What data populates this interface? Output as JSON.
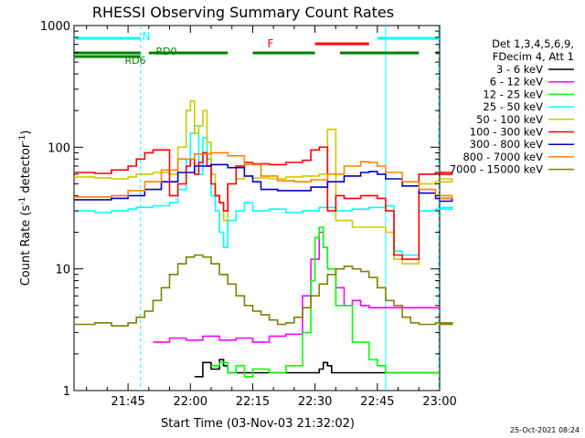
{
  "chart_data": {
    "type": "line",
    "title": "RHESSI Observing Summary Count Rates",
    "xlabel": "Start Time (03-Nov-03 21:32:02)",
    "ylabel_main": "Count Rate (s",
    "ylabel_sup1": "-1",
    "ylabel_mid": " detector",
    "ylabel_sup2": "-1",
    "ylabel_end": ")",
    "yscale": "log",
    "ylim": [
      1,
      1000
    ],
    "xlim_minutes": [
      -13,
      75
    ],
    "x_unit": "minutes relative to 21:45",
    "x_ticks": [
      {
        "value": 0,
        "label": "21:45"
      },
      {
        "value": 15,
        "label": "22:00"
      },
      {
        "value": 30,
        "label": "22:15"
      },
      {
        "value": 45,
        "label": "22:30"
      },
      {
        "value": 60,
        "label": "22:45"
      },
      {
        "value": 75,
        "label": "23:00"
      }
    ],
    "y_ticks": [
      {
        "value": 1,
        "label": "1"
      },
      {
        "value": 10,
        "label": "10"
      },
      {
        "value": 100,
        "label": "100"
      },
      {
        "value": 1000,
        "label": "1000"
      }
    ],
    "legend_header": [
      "Det 1,3,4,5,6,9,",
      "FDecim 4, Att 1"
    ],
    "legend_placement": "right",
    "timestamp": "25-Oct-2021 08:24",
    "series": [
      {
        "name": "3 - 6 keV",
        "color": "#000000",
        "x": [
          16,
          18,
          20,
          22,
          23,
          24,
          46,
          47,
          48,
          49
        ],
        "y": [
          1.3,
          1.7,
          1.5,
          1.8,
          1.6,
          1.4,
          1.5,
          1.7,
          1.6,
          1.4
        ]
      },
      {
        "name": "6 - 12 keV",
        "color": "#ff00ff",
        "x": [
          6,
          10,
          14,
          18,
          22,
          26,
          30,
          34,
          38,
          42,
          44,
          46,
          47,
          48,
          50,
          52,
          54,
          56,
          58
        ],
        "y": [
          2.5,
          2.7,
          2.6,
          2.8,
          2.6,
          2.7,
          2.5,
          2.8,
          2.9,
          6,
          12,
          20,
          15,
          10,
          7,
          5,
          5.5,
          5,
          4.8
        ]
      },
      {
        "name": "12 - 25 keV",
        "color": "#00ff00",
        "x": [
          20,
          22,
          24,
          26,
          28,
          30,
          34,
          38,
          42,
          44,
          45,
          46,
          47,
          48,
          50,
          54,
          58,
          60,
          62
        ],
        "y": [
          1.6,
          1.7,
          1.4,
          1.6,
          1.3,
          1.5,
          1.4,
          1.6,
          3,
          8,
          18,
          22,
          15,
          10,
          5,
          2.5,
          1.8,
          1.6,
          1.4
        ]
      },
      {
        "name": "25 - 50 keV",
        "color": "#00ffff",
        "x": [
          -13,
          -8,
          -4,
          0,
          2,
          6,
          10,
          12,
          14,
          15,
          16,
          17,
          18,
          19,
          20,
          21,
          22,
          23,
          24,
          26,
          28,
          30,
          34,
          38,
          42,
          46,
          50,
          54,
          58,
          62,
          64,
          66,
          70,
          74,
          78
        ],
        "y": [
          30,
          29,
          30,
          31,
          32,
          33,
          35,
          45,
          80,
          130,
          150,
          60,
          120,
          80,
          40,
          30,
          20,
          15,
          25,
          30,
          35,
          30,
          31,
          29,
          30,
          32,
          30,
          31,
          32,
          33,
          14,
          13,
          30,
          31,
          32
        ]
      },
      {
        "name": "50 - 100 keV",
        "color": "#d0c800",
        "x": [
          -13,
          -8,
          -4,
          0,
          2,
          6,
          10,
          12,
          14,
          15,
          16,
          17,
          18,
          19,
          20,
          21,
          22,
          23,
          24,
          26,
          28,
          30,
          34,
          38,
          42,
          46,
          48,
          50,
          54,
          58,
          62,
          64,
          66,
          70,
          74,
          78
        ],
        "y": [
          57,
          56,
          55,
          57,
          60,
          62,
          60,
          100,
          200,
          240,
          130,
          150,
          200,
          110,
          60,
          40,
          35,
          25,
          50,
          55,
          58,
          56,
          55,
          57,
          58,
          60,
          140,
          25,
          22,
          22,
          20,
          12,
          11,
          50,
          52,
          55
        ]
      },
      {
        "name": "100 - 300 keV",
        "color": "#ff0000",
        "x": [
          -13,
          -8,
          -4,
          0,
          2,
          4,
          6,
          10,
          12,
          14,
          15,
          16,
          17,
          18,
          19,
          20,
          21,
          22,
          23,
          24,
          26,
          28,
          30,
          34,
          38,
          42,
          44,
          46,
          48,
          50,
          52,
          56,
          60,
          62,
          64,
          66,
          70,
          74,
          78
        ],
        "y": [
          62,
          61,
          65,
          70,
          80,
          90,
          95,
          40,
          50,
          70,
          80,
          60,
          75,
          90,
          70,
          50,
          40,
          35,
          30,
          50,
          70,
          75,
          73,
          72,
          75,
          78,
          95,
          100,
          30,
          40,
          38,
          40,
          38,
          30,
          13,
          12,
          60,
          62,
          60
        ]
      },
      {
        "name": "300 - 800 keV",
        "color": "#0000cc",
        "x": [
          -13,
          -8,
          -4,
          0,
          4,
          8,
          12,
          16,
          20,
          24,
          28,
          30,
          32,
          36,
          40,
          44,
          48,
          52,
          56,
          58,
          60,
          62,
          66,
          70,
          74,
          78
        ],
        "y": [
          37,
          37,
          38,
          40,
          45,
          52,
          62,
          70,
          72,
          68,
          58,
          52,
          45,
          44,
          44,
          47,
          52,
          58,
          62,
          63,
          60,
          55,
          48,
          42,
          38,
          36
        ]
      },
      {
        "name": "800 - 7000 keV",
        "color": "#ff8000",
        "x": [
          -13,
          -8,
          -4,
          0,
          4,
          8,
          12,
          16,
          20,
          24,
          28,
          32,
          36,
          40,
          44,
          48,
          52,
          56,
          58,
          60,
          62,
          66,
          70,
          74,
          78
        ],
        "y": [
          39,
          39,
          40,
          44,
          52,
          65,
          80,
          88,
          90,
          85,
          72,
          58,
          53,
          52,
          54,
          60,
          70,
          76,
          75,
          70,
          62,
          52,
          45,
          40,
          38
        ]
      },
      {
        "name": "7000 - 15000 keV",
        "color": "#808000",
        "x": [
          -13,
          -8,
          -4,
          0,
          2,
          4,
          6,
          8,
          10,
          12,
          14,
          16,
          18,
          20,
          22,
          24,
          26,
          28,
          30,
          32,
          34,
          36,
          38,
          40,
          42,
          44,
          46,
          48,
          50,
          52,
          54,
          56,
          58,
          60,
          62,
          64,
          66,
          68,
          70,
          74,
          78
        ],
        "y": [
          3.5,
          3.6,
          3.4,
          3.6,
          4,
          4.5,
          5.5,
          7,
          9,
          11,
          12.5,
          13,
          12.5,
          11,
          9,
          7.5,
          6,
          5,
          4.5,
          4.2,
          3.8,
          3.5,
          3.6,
          4,
          4.8,
          6,
          7.5,
          9,
          10,
          10.5,
          10,
          9.5,
          8.5,
          7,
          5.5,
          5,
          4,
          3.6,
          3.5,
          3.6,
          3.5
        ]
      }
    ],
    "annotations": [
      {
        "label": "N",
        "color": "#00ffff"
      },
      {
        "label": "F",
        "color": "#ff0000"
      },
      {
        "label": "RD0",
        "color": "#008000"
      },
      {
        "label": "RD6",
        "color": "#008000"
      }
    ],
    "state_bars": [
      {
        "label": "N",
        "color": "#00ffff",
        "level": "top",
        "segments": [
          [
            -13,
            3
          ],
          [
            60,
            78
          ]
        ]
      },
      {
        "label": "F",
        "color": "#ff0000",
        "level": "upper",
        "segments": [
          [
            45,
            58
          ]
        ]
      },
      {
        "label": "RD0",
        "color": "#008000",
        "level": "mid",
        "segments": [
          [
            -13,
            3
          ],
          [
            5,
            24
          ],
          [
            30,
            45
          ],
          [
            51,
            70
          ],
          [
            74,
            78
          ]
        ]
      }
    ],
    "vlines": [
      {
        "x": 3,
        "color": "#00ffff",
        "style": "dashed"
      },
      {
        "x": 62,
        "color": "#00ffff",
        "style": "solid"
      },
      {
        "x": 79,
        "color": "#00ffff",
        "style": "dashed"
      }
    ]
  }
}
